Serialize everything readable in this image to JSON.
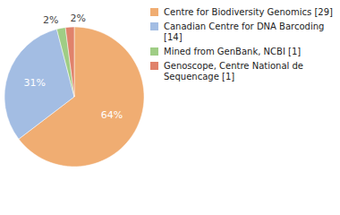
{
  "chart_data": {
    "type": "pie",
    "categories": [
      "Centre for Biodiversity Genomics [29]",
      "Canadian Centre for DNA Barcoding [14]",
      "Mined from GenBank, NCBI [1]",
      "Genoscope, Centre National de Sequencage [1]"
    ],
    "values": [
      64,
      31,
      2,
      2
    ],
    "value_labels": [
      "64%",
      "31%",
      "2%",
      "2%"
    ],
    "colors": [
      "#f0ad72",
      "#a3bde3",
      "#9fcd85",
      "#e0826b"
    ],
    "data_labels": true,
    "legend": "top-right"
  }
}
